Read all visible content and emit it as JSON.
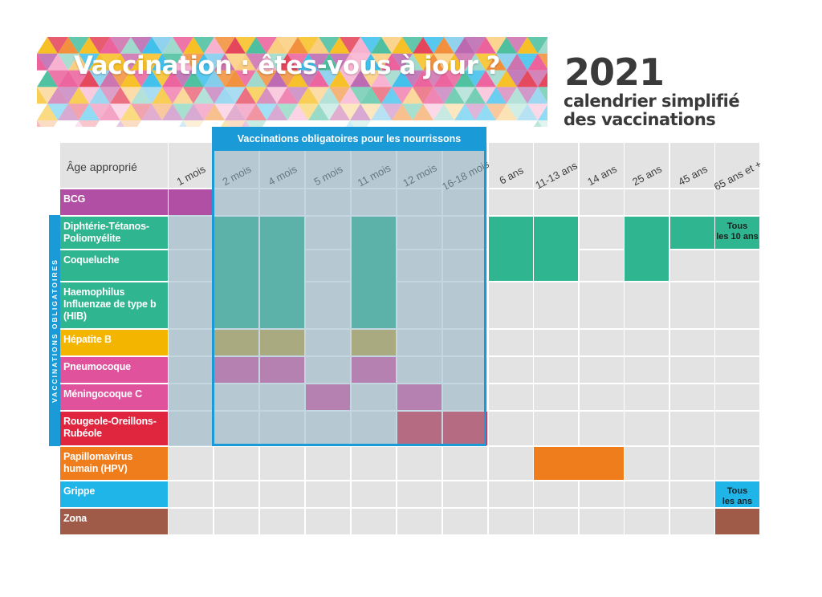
{
  "header": {
    "title": "Vaccination : êtes-vous à jour ?",
    "year": "2021",
    "subtitle_line1": "calendrier simplifié",
    "subtitle_line2": "des vaccinations"
  },
  "table": {
    "corner_label": "Âge approprié",
    "mandatory_infants_label": "Vaccinations obligatoires pour les nourrissons",
    "mandatory_side_label": "VACCINATIONS OBLIGATOIRES",
    "ages": [
      "1 mois",
      "2 mois",
      "4 mois",
      "5 mois",
      "11 mois",
      "12 mois",
      "16-18 mois",
      "6 ans",
      "11-13 ans",
      "14 ans",
      "25 ans",
      "45 ans",
      "65 ans et +"
    ],
    "vaccines": [
      {
        "label": "BCG",
        "color": "#b04fa3"
      },
      {
        "label": "Diphtérie-Tétanos-\nPoliomyélite",
        "color": "#2fb58f"
      },
      {
        "label": "Coqueluche",
        "color": "#2fb58f"
      },
      {
        "label": "Haemophilus\nInfluenzae de type b\n(HIB)",
        "color": "#2fb58f"
      },
      {
        "label": "Hépatite B",
        "color": "#f4b500"
      },
      {
        "label": "Pneumocoque",
        "color": "#e0529c"
      },
      {
        "label": "Méningocoque C",
        "color": "#e0529c"
      },
      {
        "label": "Rougeole-Oreillons-\nRubéole",
        "color": "#e0263f"
      },
      {
        "label": "Papillomavirus\nhumain (HPV)",
        "color": "#f07d1b"
      },
      {
        "label": "Grippe",
        "color": "#1fb5e8"
      },
      {
        "label": "Zona",
        "color": "#a05a48"
      }
    ],
    "notes": {
      "dtp_65": "Tous\nles 10 ans",
      "grippe_65": "Tous\nles ans"
    }
  },
  "colors": {
    "mandatory_frame": "#1a9ad7",
    "mandatory_overlay": "#8ab0c4",
    "cell_background": "#e3e3e3",
    "text_dark": "#3a3a3a"
  }
}
